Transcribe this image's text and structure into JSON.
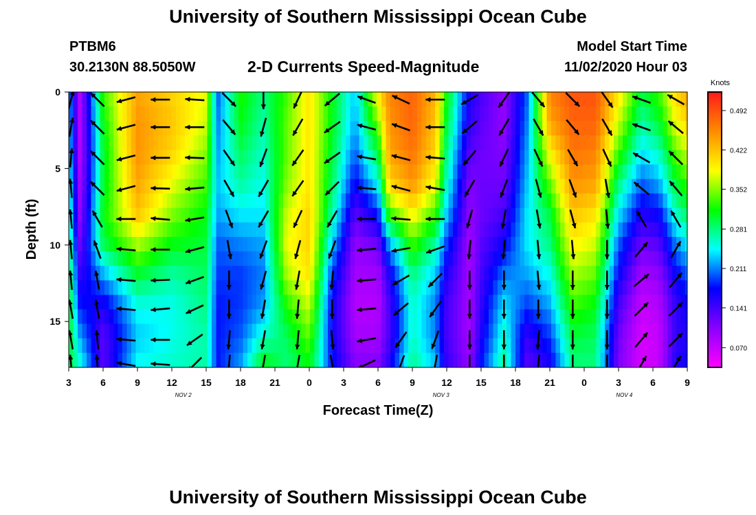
{
  "header": {
    "title": "University of Southern Mississippi Ocean Cube",
    "station": "PTBM6",
    "coordinates": "30.2130N 88.5050W",
    "subtitle": "2-D Currents Speed-Magnitude",
    "model_start_label": "Model Start Time",
    "model_start_value": "11/02/2020 Hour 03"
  },
  "footer": {
    "title": "University of Southern Mississippi Ocean Cube"
  },
  "chart_data": {
    "type": "heatmap",
    "title": "2-D Currents Speed-Magnitude",
    "xlabel": "Forecast Time(Z)",
    "ylabel": "Depth (ft)",
    "x_range": [
      3,
      57
    ],
    "x_ticks": [
      {
        "v": 3,
        "label": "3"
      },
      {
        "v": 6,
        "label": "6"
      },
      {
        "v": 9,
        "label": "9"
      },
      {
        "v": 12,
        "label": "12"
      },
      {
        "v": 15,
        "label": "15"
      },
      {
        "v": 18,
        "label": "18"
      },
      {
        "v": 21,
        "label": "21"
      },
      {
        "v": 24,
        "label": "0"
      },
      {
        "v": 27,
        "label": "3"
      },
      {
        "v": 30,
        "label": "6"
      },
      {
        "v": 33,
        "label": "9"
      },
      {
        "v": 36,
        "label": "12"
      },
      {
        "v": 39,
        "label": "15"
      },
      {
        "v": 42,
        "label": "18"
      },
      {
        "v": 45,
        "label": "21"
      },
      {
        "v": 48,
        "label": "0"
      },
      {
        "v": 51,
        "label": "3"
      },
      {
        "v": 54,
        "label": "6"
      },
      {
        "v": 57,
        "label": "9"
      }
    ],
    "date_labels": [
      {
        "v": 13,
        "label": "NOV 2"
      },
      {
        "v": 35.5,
        "label": "NOV 3"
      },
      {
        "v": 51.5,
        "label": "NOV 4"
      }
    ],
    "y_range": [
      0,
      18
    ],
    "y_ticks": [
      0,
      5,
      10,
      15
    ],
    "colorbar": {
      "unit": "Knots",
      "min": 0.035,
      "max": 0.525,
      "ticks": [
        "0.492",
        "0.422",
        "0.352",
        "0.281",
        "0.211",
        "0.141",
        "0.070"
      ]
    },
    "depth_profiles": [
      {
        "t": 3,
        "values": [
          0.22,
          0.23,
          0.24,
          0.26,
          0.27,
          0.29,
          0.3,
          0.31,
          0.31,
          0.3
        ]
      },
      {
        "t": 4,
        "values": [
          0.08,
          0.08,
          0.08,
          0.09,
          0.1,
          0.12,
          0.15,
          0.18,
          0.22,
          0.26
        ]
      },
      {
        "t": 6,
        "values": [
          0.33,
          0.31,
          0.3,
          0.3,
          0.31,
          0.29,
          0.22,
          0.16,
          0.13,
          0.13
        ]
      },
      {
        "t": 9,
        "values": [
          0.44,
          0.45,
          0.45,
          0.44,
          0.42,
          0.36,
          0.3,
          0.25,
          0.23,
          0.25
        ]
      },
      {
        "t": 12,
        "values": [
          0.41,
          0.42,
          0.41,
          0.38,
          0.35,
          0.31,
          0.27,
          0.25,
          0.25,
          0.26
        ]
      },
      {
        "t": 15,
        "values": [
          0.38,
          0.37,
          0.35,
          0.33,
          0.31,
          0.3,
          0.29,
          0.28,
          0.27,
          0.27
        ]
      },
      {
        "t": 16,
        "values": [
          0.2,
          0.21,
          0.22,
          0.23,
          0.22,
          0.2,
          0.19,
          0.18,
          0.18,
          0.18
        ]
      },
      {
        "t": 18,
        "values": [
          0.32,
          0.31,
          0.29,
          0.27,
          0.24,
          0.21,
          0.19,
          0.19,
          0.2,
          0.22
        ]
      },
      {
        "t": 20,
        "values": [
          0.28,
          0.27,
          0.26,
          0.25,
          0.24,
          0.22,
          0.21,
          0.22,
          0.26,
          0.32
        ]
      },
      {
        "t": 22,
        "values": [
          0.33,
          0.34,
          0.34,
          0.35,
          0.37,
          0.38,
          0.36,
          0.32,
          0.29,
          0.28
        ]
      },
      {
        "t": 24,
        "values": [
          0.4,
          0.4,
          0.4,
          0.4,
          0.41,
          0.41,
          0.4,
          0.37,
          0.34,
          0.31
        ]
      },
      {
        "t": 26,
        "values": [
          0.31,
          0.31,
          0.3,
          0.29,
          0.27,
          0.23,
          0.19,
          0.17,
          0.17,
          0.18
        ]
      },
      {
        "t": 28,
        "values": [
          0.23,
          0.22,
          0.2,
          0.17,
          0.13,
          0.1,
          0.09,
          0.08,
          0.09,
          0.11
        ]
      },
      {
        "t": 30,
        "values": [
          0.4,
          0.35,
          0.3,
          0.25,
          0.18,
          0.12,
          0.09,
          0.08,
          0.09,
          0.11
        ]
      },
      {
        "t": 31,
        "values": [
          0.46,
          0.45,
          0.44,
          0.41,
          0.33,
          0.22,
          0.16,
          0.14,
          0.14,
          0.16
        ]
      },
      {
        "t": 33,
        "values": [
          0.48,
          0.48,
          0.47,
          0.45,
          0.39,
          0.33,
          0.28,
          0.26,
          0.26,
          0.28
        ]
      },
      {
        "t": 35,
        "values": [
          0.43,
          0.42,
          0.41,
          0.38,
          0.33,
          0.27,
          0.23,
          0.21,
          0.21,
          0.23
        ]
      },
      {
        "t": 36,
        "values": [
          0.32,
          0.3,
          0.28,
          0.26,
          0.23,
          0.19,
          0.16,
          0.14,
          0.14,
          0.15
        ]
      },
      {
        "t": 38,
        "values": [
          0.16,
          0.15,
          0.13,
          0.11,
          0.1,
          0.09,
          0.09,
          0.09,
          0.09,
          0.1
        ]
      },
      {
        "t": 39,
        "values": [
          0.14,
          0.13,
          0.12,
          0.12,
          0.12,
          0.13,
          0.14,
          0.15,
          0.16,
          0.18
        ]
      },
      {
        "t": 41,
        "values": [
          0.1,
          0.1,
          0.11,
          0.12,
          0.14,
          0.17,
          0.21,
          0.24,
          0.26,
          0.28
        ]
      },
      {
        "t": 43,
        "values": [
          0.2,
          0.21,
          0.22,
          0.23,
          0.24,
          0.24,
          0.22,
          0.19,
          0.15,
          0.13
        ]
      },
      {
        "t": 45,
        "values": [
          0.46,
          0.44,
          0.39,
          0.34,
          0.3,
          0.28,
          0.25,
          0.22,
          0.19,
          0.16
        ]
      },
      {
        "t": 47,
        "values": [
          0.49,
          0.48,
          0.47,
          0.45,
          0.42,
          0.39,
          0.36,
          0.33,
          0.3,
          0.28
        ]
      },
      {
        "t": 49,
        "values": [
          0.49,
          0.48,
          0.46,
          0.44,
          0.4,
          0.37,
          0.34,
          0.31,
          0.29,
          0.28
        ]
      },
      {
        "t": 51,
        "values": [
          0.4,
          0.37,
          0.33,
          0.28,
          0.24,
          0.2,
          0.17,
          0.14,
          0.12,
          0.11
        ]
      },
      {
        "t": 53,
        "values": [
          0.3,
          0.27,
          0.24,
          0.2,
          0.16,
          0.12,
          0.09,
          0.07,
          0.06,
          0.06
        ]
      },
      {
        "t": 54.5,
        "values": [
          0.33,
          0.3,
          0.26,
          0.22,
          0.17,
          0.13,
          0.1,
          0.08,
          0.07,
          0.07
        ]
      },
      {
        "t": 56,
        "values": [
          0.41,
          0.38,
          0.34,
          0.3,
          0.26,
          0.21,
          0.17,
          0.15,
          0.15,
          0.16
        ]
      },
      {
        "t": 57,
        "values": [
          0.44,
          0.41,
          0.37,
          0.33,
          0.29,
          0.24,
          0.2,
          0.17,
          0.16,
          0.17
        ]
      }
    ],
    "vector_depths": [
      0.5,
      2.3,
      4.3,
      6.3,
      8.3,
      10.3,
      12.3,
      14.2,
      16.2,
      17.8
    ],
    "vectors": [
      {
        "t": 3.2,
        "angles": [
          75,
          80,
          85,
          95,
          95,
          95,
          95,
          100,
          100,
          95
        ]
      },
      {
        "t": 5.5,
        "angles": [
          135,
          135,
          135,
          135,
          120,
          110,
          100,
          100,
          95,
          95
        ]
      },
      {
        "t": 8,
        "angles": [
          195,
          195,
          195,
          195,
          180,
          175,
          175,
          175,
          175,
          170
        ]
      },
      {
        "t": 11,
        "angles": [
          180,
          180,
          180,
          178,
          175,
          180,
          182,
          185,
          180,
          176
        ]
      },
      {
        "t": 14,
        "angles": [
          176,
          180,
          178,
          185,
          190,
          195,
          200,
          205,
          215,
          225
        ]
      },
      {
        "t": 17,
        "angles": [
          315,
          310,
          305,
          300,
          290,
          280,
          270,
          270,
          265,
          265
        ]
      },
      {
        "t": 20,
        "angles": [
          270,
          255,
          250,
          240,
          240,
          250,
          255,
          260,
          260,
          260
        ]
      },
      {
        "t": 23,
        "angles": [
          245,
          240,
          235,
          235,
          245,
          255,
          260,
          265,
          265,
          260
        ]
      },
      {
        "t": 26,
        "angles": [
          220,
          215,
          215,
          225,
          240,
          250,
          265,
          270,
          275,
          280
        ]
      },
      {
        "t": 29,
        "angles": [
          160,
          165,
          170,
          175,
          180,
          185,
          185,
          185,
          190,
          205
        ]
      },
      {
        "t": 32,
        "angles": [
          155,
          160,
          165,
          165,
          175,
          190,
          210,
          220,
          235,
          250
        ]
      },
      {
        "t": 35,
        "angles": [
          180,
          180,
          175,
          170,
          180,
          200,
          225,
          235,
          250,
          260
        ]
      },
      {
        "t": 38,
        "angles": [
          210,
          220,
          230,
          240,
          255,
          265,
          270,
          270,
          270,
          270
        ]
      },
      {
        "t": 41,
        "angles": [
          235,
          240,
          245,
          250,
          260,
          265,
          270,
          270,
          270,
          270
        ]
      },
      {
        "t": 44,
        "angles": [
          310,
          300,
          295,
          285,
          280,
          275,
          275,
          270,
          265,
          265
        ]
      },
      {
        "t": 47,
        "angles": [
          315,
          310,
          300,
          290,
          285,
          275,
          270,
          270,
          270,
          270
        ]
      },
      {
        "t": 50,
        "angles": [
          305,
          300,
          295,
          280,
          275,
          270,
          270,
          270,
          270,
          270
        ]
      },
      {
        "t": 53,
        "angles": [
          160,
          160,
          150,
          140,
          120,
          50,
          40,
          45,
          50,
          60
        ]
      },
      {
        "t": 56,
        "angles": [
          150,
          140,
          135,
          130,
          120,
          60,
          50,
          45,
          45,
          60
        ]
      }
    ]
  }
}
